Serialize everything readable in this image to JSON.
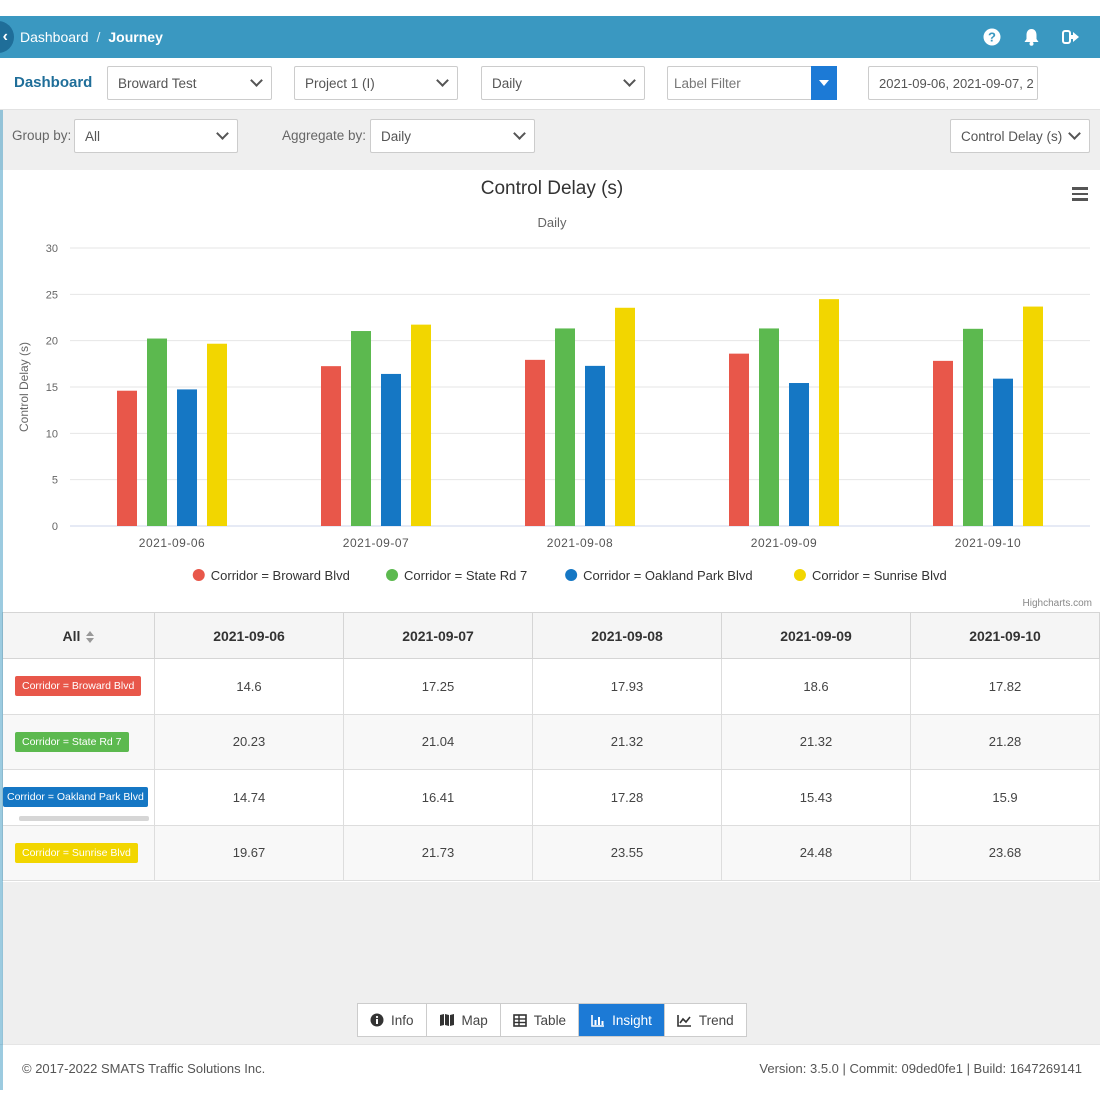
{
  "header": {
    "back_icon": "chevron-left-icon",
    "breadcrumb": [
      "Dashboard",
      "Journey"
    ],
    "separator": "/",
    "icons": [
      "help-icon",
      "bell-icon",
      "logout-icon"
    ]
  },
  "filterbar": {
    "brand": "Dashboard",
    "site": "Broward Test",
    "project": "Project 1 (I)",
    "period": "Daily",
    "label_filter_placeholder": "Label Filter",
    "date_range": "2021-09-06, 2021-09-07, 2"
  },
  "groupbar": {
    "group_by_label": "Group by:",
    "group_by_value": "All",
    "aggregate_label": "Aggregate by:",
    "aggregate_value": "Daily",
    "metric_value": "Control Delay (s)"
  },
  "chart_data": {
    "type": "bar",
    "title": "Control Delay (s)",
    "subtitle": "Daily",
    "ylabel": "Control Delay (s)",
    "xlabel": "",
    "ylim": [
      0,
      30
    ],
    "yticks": [
      0,
      5,
      10,
      15,
      20,
      25,
      30
    ],
    "grid": true,
    "legend_position": "bottom",
    "categories": [
      "2021-09-06",
      "2021-09-07",
      "2021-09-08",
      "2021-09-09",
      "2021-09-10"
    ],
    "series": [
      {
        "name": "Corridor = Broward Blvd",
        "color": "#e8574a",
        "values": [
          14.6,
          17.25,
          17.93,
          18.6,
          17.82
        ]
      },
      {
        "name": "Corridor = State Rd 7",
        "color": "#5cb94f",
        "values": [
          20.23,
          21.04,
          21.32,
          21.32,
          21.28
        ]
      },
      {
        "name": "Corridor = Oakland Park Blvd",
        "color": "#1577c4",
        "values": [
          14.74,
          16.41,
          17.28,
          15.43,
          15.9
        ]
      },
      {
        "name": "Corridor = Sunrise Blvd",
        "color": "#f2d600",
        "values": [
          19.67,
          21.73,
          23.55,
          24.48,
          23.68
        ]
      }
    ],
    "credits": "Highcharts.com"
  },
  "table": {
    "corner_label": "All",
    "columns": [
      "2021-09-06",
      "2021-09-07",
      "2021-09-08",
      "2021-09-09",
      "2021-09-10"
    ],
    "rows": [
      {
        "label": "Corridor = Broward Blvd",
        "color": "#e8574a",
        "cells": [
          "14.6",
          "17.25",
          "17.93",
          "18.6",
          "17.82"
        ]
      },
      {
        "label": "Corridor = State Rd 7",
        "color": "#5cb94f",
        "cells": [
          "20.23",
          "21.04",
          "21.32",
          "21.32",
          "21.28"
        ]
      },
      {
        "label": "Corridor = Oakland Park Blvd",
        "color": "#1577c4",
        "cells": [
          "14.74",
          "16.41",
          "17.28",
          "15.43",
          "15.9"
        ]
      },
      {
        "label": "Corridor = Sunrise Blvd",
        "color": "#f2d600",
        "cells": [
          "19.67",
          "21.73",
          "23.55",
          "24.48",
          "23.68"
        ]
      }
    ]
  },
  "tabs": [
    {
      "label": "Info",
      "icon": "info-icon",
      "active": false
    },
    {
      "label": "Map",
      "icon": "map-icon",
      "active": false
    },
    {
      "label": "Table",
      "icon": "table-icon",
      "active": false
    },
    {
      "label": "Insight",
      "icon": "chart-icon",
      "active": true
    },
    {
      "label": "Trend",
      "icon": "trend-icon",
      "active": false
    }
  ],
  "footer": {
    "copyright": "© 2017-2022 SMATS Traffic Solutions Inc.",
    "version": "Version: 3.5.0 | Commit: 09ded0fe1 | Build: 1647269141"
  },
  "colors": {
    "header": "#3a98c1",
    "accent": "#1c7ad6",
    "brand": "#1f6e99"
  }
}
